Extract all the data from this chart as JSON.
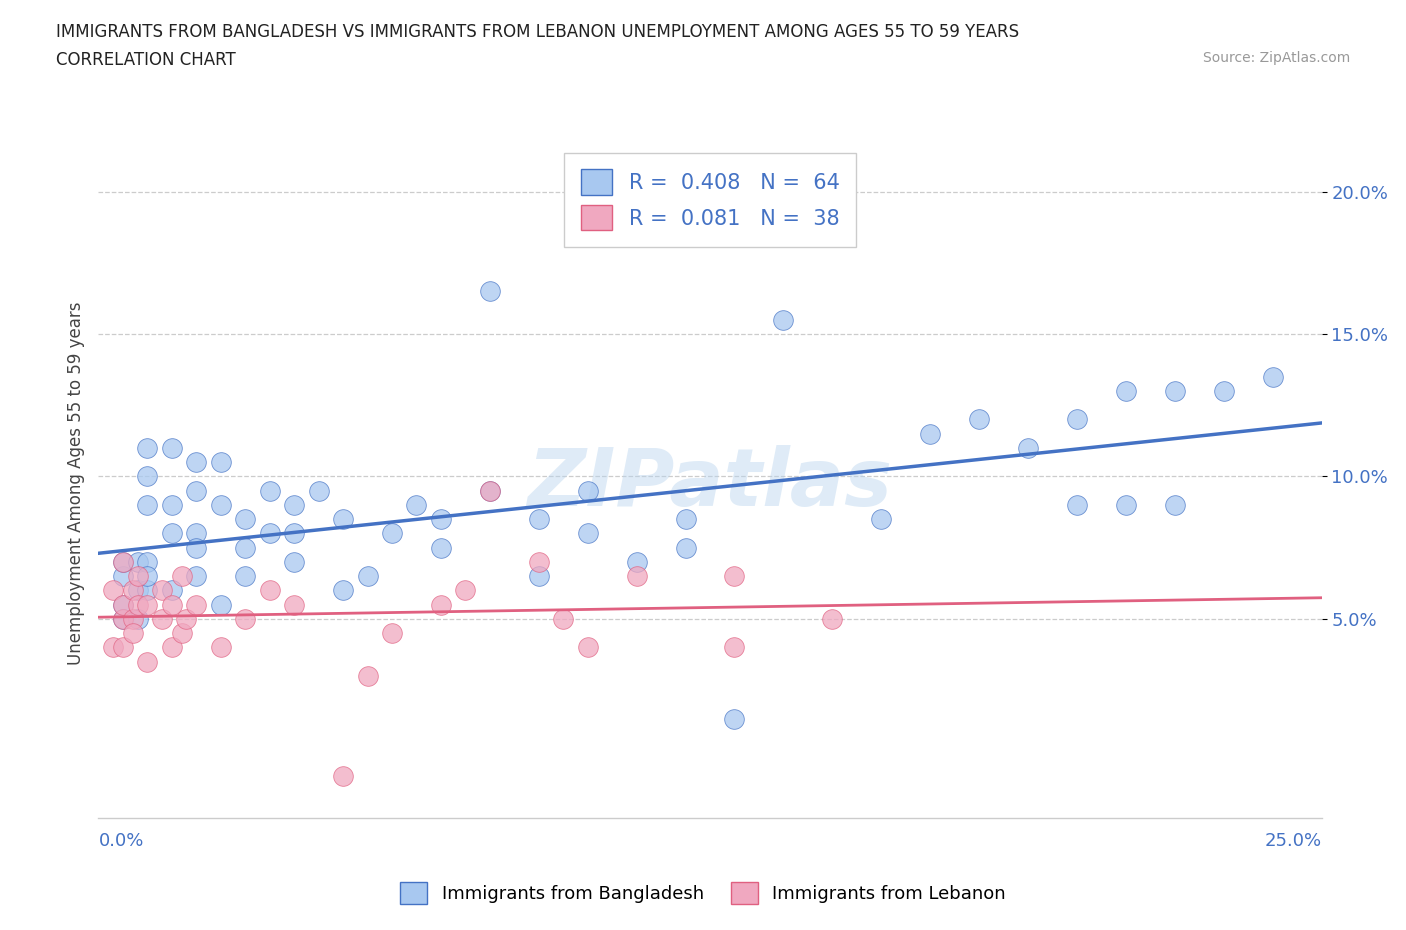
{
  "title_line1": "IMMIGRANTS FROM BANGLADESH VS IMMIGRANTS FROM LEBANON UNEMPLOYMENT AMONG AGES 55 TO 59 YEARS",
  "title_line2": "CORRELATION CHART",
  "source_text": "Source: ZipAtlas.com",
  "ylabel": "Unemployment Among Ages 55 to 59 years",
  "xlim": [
    0.0,
    0.25
  ],
  "ylim": [
    -0.02,
    0.215
  ],
  "yticks": [
    0.05,
    0.1,
    0.15,
    0.2
  ],
  "ytick_labels": [
    "5.0%",
    "10.0%",
    "15.0%",
    "20.0%"
  ],
  "color_bangladesh": "#a8c8f0",
  "color_lebanon": "#f0a8c0",
  "color_line_bangladesh": "#4472c4",
  "color_line_lebanon": "#e06080",
  "watermark": "ZIPatlas",
  "bangladesh_x": [
    0.005,
    0.005,
    0.005,
    0.005,
    0.008,
    0.008,
    0.008,
    0.01,
    0.01,
    0.01,
    0.01,
    0.01,
    0.01,
    0.015,
    0.015,
    0.015,
    0.015,
    0.02,
    0.02,
    0.02,
    0.02,
    0.02,
    0.025,
    0.025,
    0.025,
    0.03,
    0.03,
    0.03,
    0.035,
    0.035,
    0.04,
    0.04,
    0.04,
    0.045,
    0.05,
    0.05,
    0.055,
    0.06,
    0.065,
    0.07,
    0.07,
    0.08,
    0.08,
    0.09,
    0.09,
    0.1,
    0.1,
    0.11,
    0.12,
    0.12,
    0.13,
    0.14,
    0.16,
    0.17,
    0.18,
    0.19,
    0.2,
    0.2,
    0.21,
    0.21,
    0.22,
    0.22,
    0.23,
    0.24
  ],
  "bangladesh_y": [
    0.055,
    0.065,
    0.07,
    0.05,
    0.06,
    0.07,
    0.05,
    0.06,
    0.07,
    0.09,
    0.1,
    0.11,
    0.065,
    0.08,
    0.09,
    0.11,
    0.06,
    0.08,
    0.095,
    0.105,
    0.065,
    0.075,
    0.09,
    0.105,
    0.055,
    0.085,
    0.075,
    0.065,
    0.095,
    0.08,
    0.07,
    0.09,
    0.08,
    0.095,
    0.085,
    0.06,
    0.065,
    0.08,
    0.09,
    0.085,
    0.075,
    0.165,
    0.095,
    0.085,
    0.065,
    0.08,
    0.095,
    0.07,
    0.075,
    0.085,
    0.015,
    0.155,
    0.085,
    0.115,
    0.12,
    0.11,
    0.12,
    0.09,
    0.13,
    0.09,
    0.13,
    0.09,
    0.13,
    0.135
  ],
  "lebanon_x": [
    0.003,
    0.003,
    0.005,
    0.005,
    0.005,
    0.005,
    0.007,
    0.007,
    0.007,
    0.008,
    0.008,
    0.01,
    0.01,
    0.013,
    0.013,
    0.015,
    0.015,
    0.017,
    0.017,
    0.018,
    0.02,
    0.025,
    0.03,
    0.035,
    0.04,
    0.05,
    0.055,
    0.06,
    0.07,
    0.075,
    0.08,
    0.09,
    0.095,
    0.1,
    0.11,
    0.13,
    0.13,
    0.15
  ],
  "lebanon_y": [
    0.04,
    0.06,
    0.05,
    0.055,
    0.07,
    0.04,
    0.05,
    0.06,
    0.045,
    0.055,
    0.065,
    0.035,
    0.055,
    0.05,
    0.06,
    0.055,
    0.04,
    0.045,
    0.065,
    0.05,
    0.055,
    0.04,
    0.05,
    0.06,
    0.055,
    -0.005,
    0.03,
    0.045,
    0.055,
    0.06,
    0.095,
    0.07,
    0.05,
    0.04,
    0.065,
    0.04,
    0.065,
    0.05
  ]
}
